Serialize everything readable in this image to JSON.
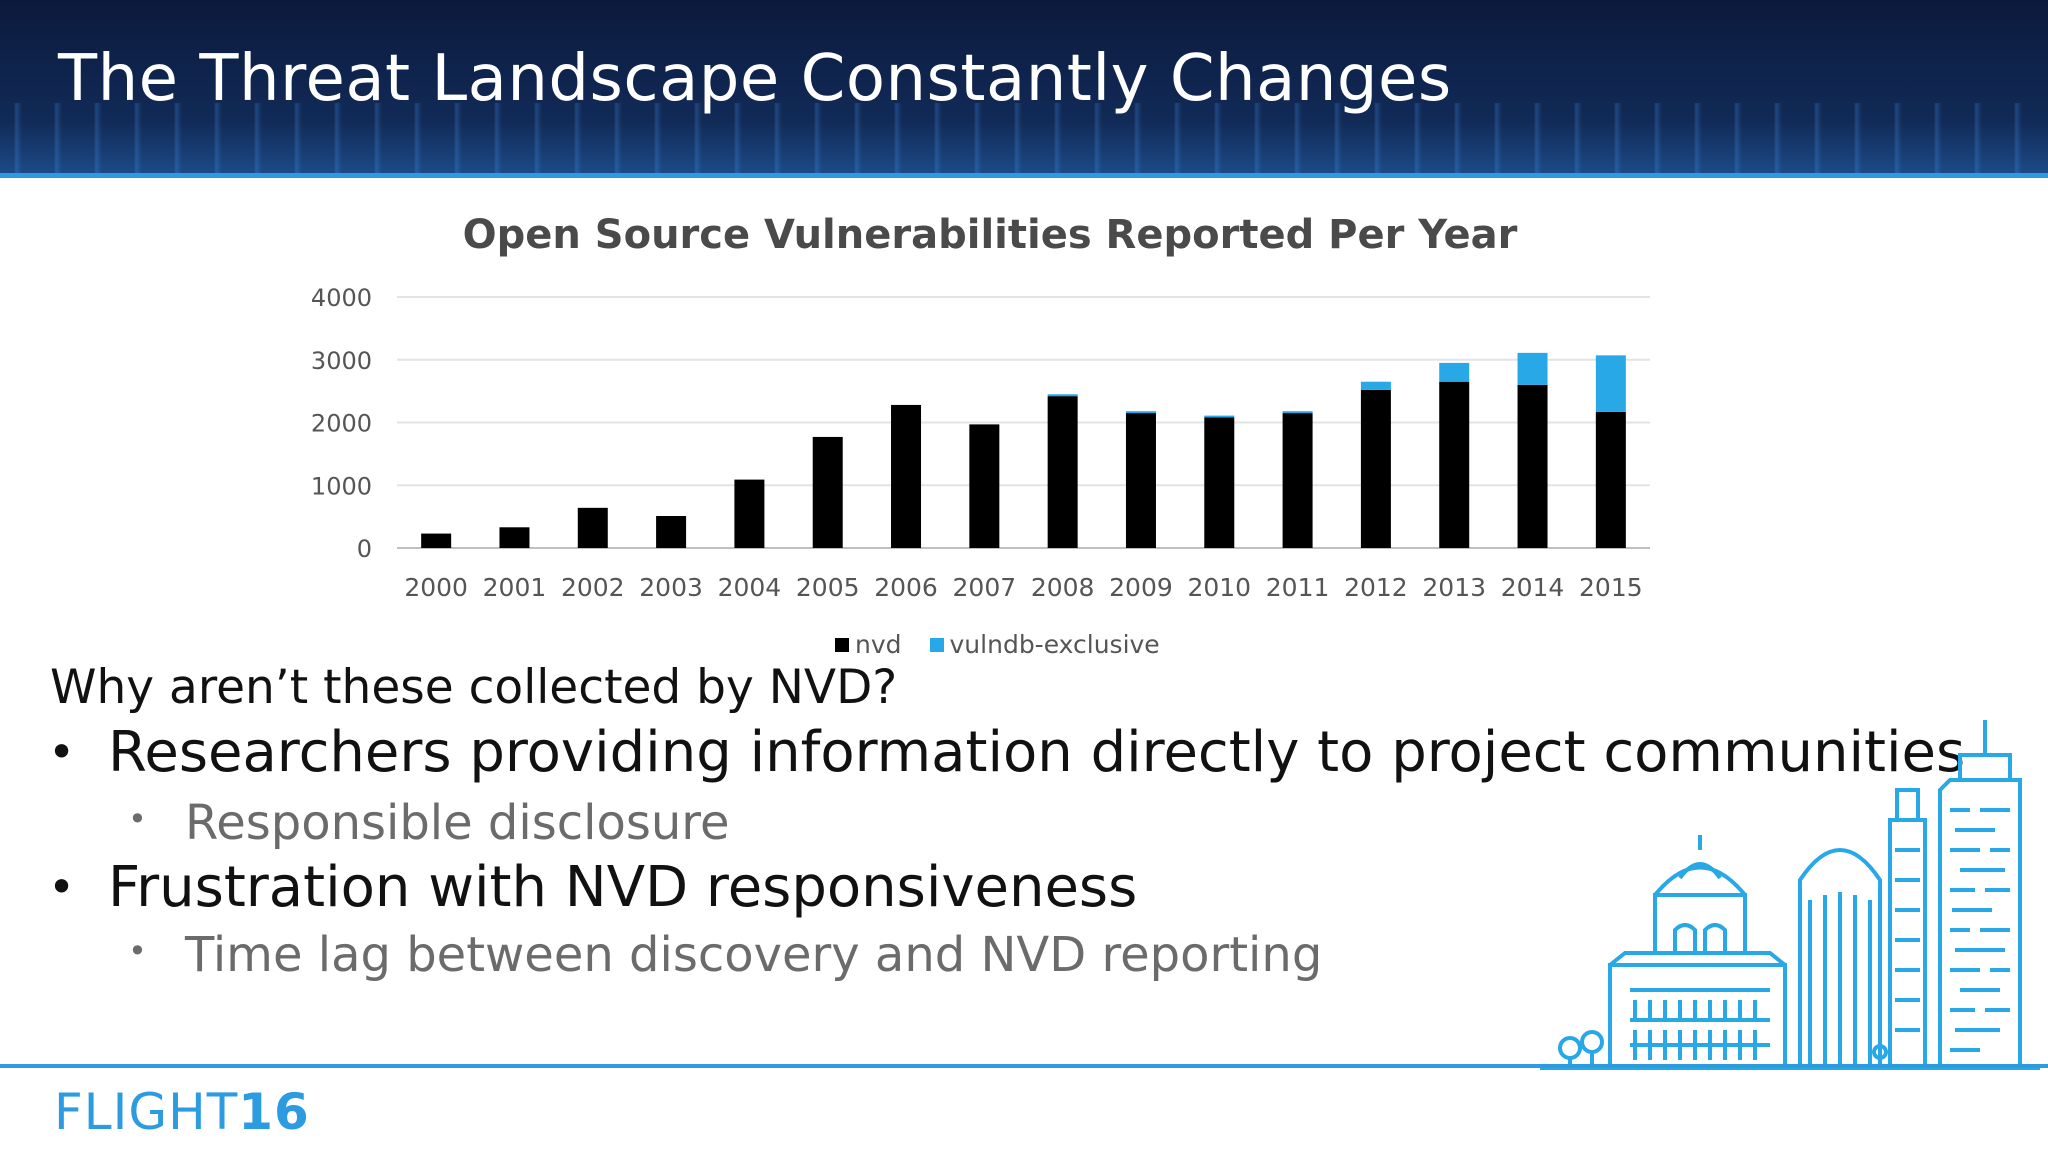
{
  "slide": {
    "title": "The Threat Landscape Constantly Changes"
  },
  "chart_data": {
    "type": "bar",
    "stacked": true,
    "title": "Open Source Vulnerabilities Reported Per Year",
    "categories": [
      "2000",
      "2001",
      "2002",
      "2003",
      "2004",
      "2005",
      "2006",
      "2007",
      "2008",
      "2009",
      "2010",
      "2011",
      "2012",
      "2013",
      "2014",
      "2015"
    ],
    "series": [
      {
        "name": "nvd",
        "color": "#000000",
        "values": [
          230,
          330,
          640,
          510,
          1090,
          1770,
          2280,
          1970,
          2420,
          2150,
          2080,
          2150,
          2520,
          2650,
          2600,
          2170
        ]
      },
      {
        "name": "vulndb-exclusive",
        "color": "#29a8e8",
        "values": [
          0,
          0,
          0,
          0,
          0,
          0,
          0,
          0,
          30,
          30,
          30,
          30,
          130,
          300,
          510,
          900
        ]
      }
    ],
    "yticks": [
      "0",
      "1000",
      "2000",
      "3000",
      "4000"
    ],
    "ylim": [
      0,
      4000
    ],
    "grid": true,
    "legend": "bottom"
  },
  "content": {
    "intro": "Why aren’t these collected by NVD?",
    "bullets": [
      {
        "text": "Researchers providing information directly to project communities",
        "sub": "Responsible disclosure"
      },
      {
        "text": "Frustration with NVD responsiveness",
        "sub": "Time lag between discovery and NVD reporting"
      }
    ]
  },
  "footer": {
    "logo_text": "FLIGHT",
    "logo_num": "16",
    "brand_color": "#2d9be0"
  },
  "icons": {
    "city": "city-skyline-icon"
  }
}
